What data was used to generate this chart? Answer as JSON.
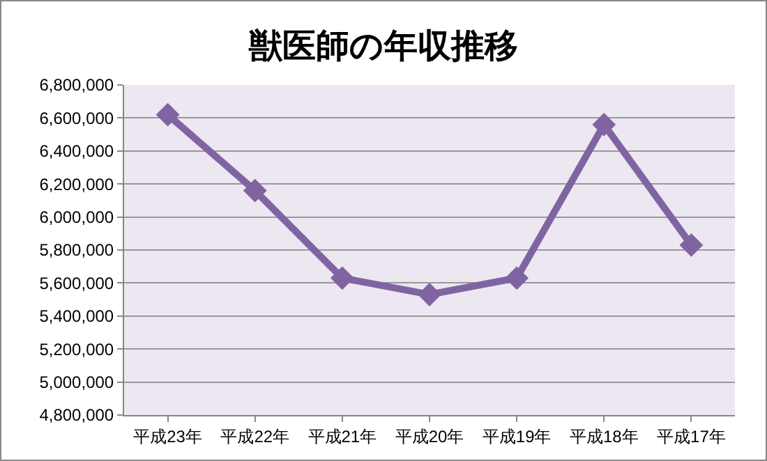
{
  "chart_data": {
    "type": "line",
    "title": "獣医師の年収推移",
    "categories": [
      "平成23年",
      "平成22年",
      "平成21年",
      "平成20年",
      "平成19年",
      "平成18年",
      "平成17年"
    ],
    "series": [
      {
        "color": "#8064a2",
        "values": [
          6620000,
          6160000,
          5630000,
          5530000,
          5630000,
          6560000,
          5830000
        ]
      }
    ],
    "ylim": [
      4800000,
      6800000
    ],
    "yticks": [
      {
        "value": 4800000,
        "label": "4,800,000"
      },
      {
        "value": 5000000,
        "label": "5,000,000"
      },
      {
        "value": 5200000,
        "label": "5,200,000"
      },
      {
        "value": 5400000,
        "label": "5,400,000"
      },
      {
        "value": 5600000,
        "label": "5,600,000"
      },
      {
        "value": 5800000,
        "label": "5,800,000"
      },
      {
        "value": 6000000,
        "label": "6,000,000"
      },
      {
        "value": 6200000,
        "label": "6,200,000"
      },
      {
        "value": 6400000,
        "label": "6,400,000"
      },
      {
        "value": 6600000,
        "label": "6,600,000"
      },
      {
        "value": 6800000,
        "label": "6,800,000"
      }
    ],
    "grid": "y",
    "marker": "diamond",
    "line_style": "solid"
  }
}
